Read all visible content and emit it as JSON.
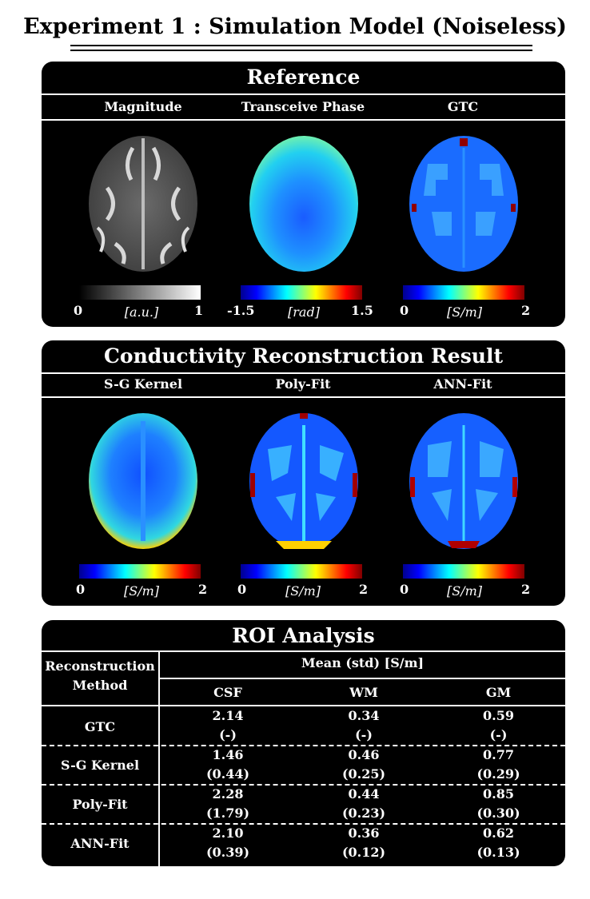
{
  "title": "Experiment 1 : Simulation Model (Noiseless)",
  "reference": {
    "title": "Reference",
    "columns": [
      {
        "label": "Magnitude",
        "cb_min": "0",
        "cb_max": "1",
        "cb_unit": "[a.u.]"
      },
      {
        "label": "Transceive Phase",
        "cb_min": "-1.5",
        "cb_max": "1.5",
        "cb_unit": "[rad]"
      },
      {
        "label": "GTC",
        "cb_min": "0",
        "cb_max": "2",
        "cb_unit": "[S/m]"
      }
    ]
  },
  "reconstruction": {
    "title": "Conductivity Reconstruction Result",
    "columns": [
      {
        "label": "S-G Kernel",
        "cb_min": "0",
        "cb_max": "2",
        "cb_unit": "[S/m]"
      },
      {
        "label": "Poly-Fit",
        "cb_min": "0",
        "cb_max": "2",
        "cb_unit": "[S/m]"
      },
      {
        "label": "ANN-Fit",
        "cb_min": "0",
        "cb_max": "2",
        "cb_unit": "[S/m]"
      }
    ]
  },
  "roi": {
    "title": "ROI Analysis",
    "method_header_1": "Reconstruction",
    "method_header_2": "Method",
    "group_header": "Mean (std) [S/m]",
    "col_headers": [
      "CSF",
      "WM",
      "GM"
    ],
    "rows": [
      {
        "method": "GTC",
        "mean": [
          "2.14",
          "0.34",
          "0.59"
        ],
        "std": [
          "(-)",
          "(-)",
          "(-)"
        ]
      },
      {
        "method": "S-G Kernel",
        "mean": [
          "1.46",
          "0.46",
          "0.77"
        ],
        "std": [
          "(0.44)",
          "(0.25)",
          "(0.29)"
        ]
      },
      {
        "method": "Poly-Fit",
        "mean": [
          "2.28",
          "0.44",
          "0.85"
        ],
        "std": [
          "(1.79)",
          "(0.23)",
          "(0.30)"
        ]
      },
      {
        "method": "ANN-Fit",
        "mean": [
          "2.10",
          "0.36",
          "0.62"
        ],
        "std": [
          "(0.39)",
          "(0.12)",
          "(0.13)"
        ]
      }
    ]
  },
  "colormaps": {
    "gray": [
      "#000000",
      "#ffffff"
    ],
    "jet": [
      "#00008f",
      "#0000ff",
      "#00ffff",
      "#ffff00",
      "#ff0000",
      "#800000"
    ]
  }
}
